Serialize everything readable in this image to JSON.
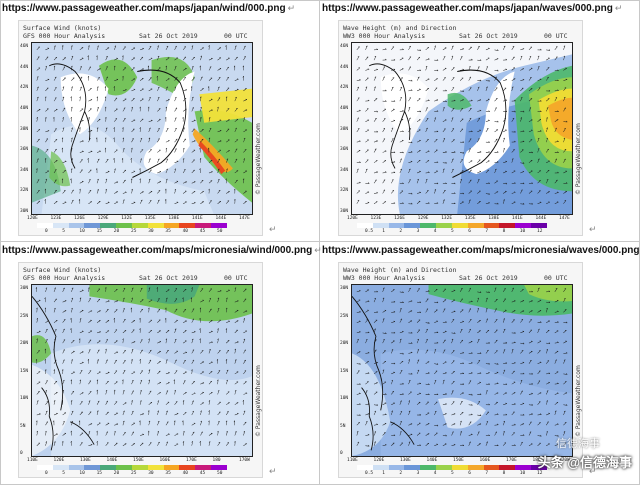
{
  "panels": [
    {
      "url": "https://www.passageweather.com/maps/japan/wind/000.png",
      "title1": "Surface Wind (knots)",
      "title2": "GFS 000 Hour Analysis",
      "date": "Sat 26 Oct 2019",
      "time": "00 UTC",
      "lat_ticks": [
        "46N",
        "44N",
        "42N",
        "40N",
        "38N",
        "36N",
        "34N",
        "32N",
        "30N"
      ],
      "lon_ticks": [
        "120E",
        "123E",
        "126E",
        "129E",
        "132E",
        "135E",
        "138E",
        "141E",
        "144E",
        "147E"
      ],
      "colorbar_ticks": [
        "0",
        "5",
        "10",
        "15",
        "20",
        "25",
        "30",
        "35",
        "40",
        "45",
        "50"
      ],
      "credit": "© PassageWeather.com"
    },
    {
      "url": "https://www.passageweather.com/maps/japan/waves/000.png",
      "title1": "Wave Height (m) and Direction",
      "title2": "WW3 000 Hour Analysis",
      "date": "Sat 26 Oct 2019",
      "time": "00 UTC",
      "lat_ticks": [
        "46N",
        "44N",
        "42N",
        "40N",
        "38N",
        "36N",
        "34N",
        "32N",
        "30N"
      ],
      "lon_ticks": [
        "120E",
        "123E",
        "126E",
        "129E",
        "132E",
        "135E",
        "138E",
        "141E",
        "144E",
        "147E"
      ],
      "colorbar_ticks": [
        "0.5",
        "1",
        "2",
        "3",
        "4",
        "5",
        "6",
        "7",
        "8",
        "10",
        "12"
      ],
      "credit": "© PassageWeather.com"
    },
    {
      "url": "https://www.passageweather.com/maps/micronesia/wind/000.png",
      "title1": "Surface Wind (knots)",
      "title2": "GFS 000 Hour Analysis",
      "date": "Sat 26 Oct 2019",
      "time": "00 UTC",
      "lat_ticks": [
        "30N",
        "25N",
        "20N",
        "15N",
        "10N",
        "5N",
        "0"
      ],
      "lon_ticks": [
        "110E",
        "120E",
        "130E",
        "140E",
        "150E",
        "160E",
        "170E",
        "180",
        "170W"
      ],
      "colorbar_ticks": [
        "0",
        "5",
        "10",
        "15",
        "20",
        "25",
        "30",
        "35",
        "40",
        "45",
        "50"
      ],
      "credit": "© PassageWeather.com"
    },
    {
      "url": "https://www.passageweather.com/maps/micronesia/waves/000.png",
      "title1": "Wave Height (m) and Direction",
      "title2": "WW3 000 Hour Analysis",
      "date": "Sat 26 Oct 2019",
      "time": "00 UTC",
      "lat_ticks": [
        "30N",
        "25N",
        "20N",
        "15N",
        "10N",
        "5N",
        "0"
      ],
      "lon_ticks": [
        "110E",
        "120E",
        "130E",
        "140E",
        "150E",
        "160E",
        "170E",
        "180",
        "170W"
      ],
      "colorbar_ticks": [
        "0.5",
        "1",
        "2",
        "3",
        "4",
        "5",
        "6",
        "7",
        "8",
        "10",
        "12"
      ],
      "credit": "© PassageWeather.com"
    }
  ],
  "watermark": "头条 @信德海事",
  "watermark2": "信德海事",
  "return_mark": "↵",
  "colors": {
    "wind_scale": [
      "#ffffff",
      "#d8e6f6",
      "#a9c4ea",
      "#6f97d6",
      "#4aa87a",
      "#6cc04a",
      "#b6d83a",
      "#f2e23a",
      "#f5a623",
      "#e8451f",
      "#c81a7a",
      "#9b00d0"
    ],
    "wave_scale": [
      "#ffffff",
      "#cfe0f4",
      "#98b8e8",
      "#6a96d8",
      "#4db86a",
      "#9ad24a",
      "#f0dc34",
      "#f4a72a",
      "#e5571f",
      "#c4162a",
      "#9b00d0",
      "#6a00a8"
    ],
    "land": "#ffffff",
    "sea_calm": "#eef2f8"
  }
}
